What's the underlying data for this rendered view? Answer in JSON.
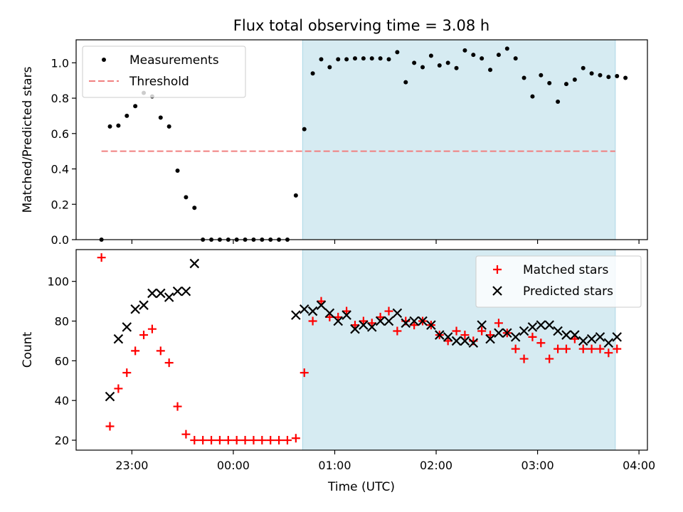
{
  "title": "Flux total observing time = 3.08 h",
  "xlabel": "Time (UTC)",
  "chart_data": [
    {
      "type": "scatter",
      "ylabel": "Matched/Predicted stars",
      "xlim": [
        "22:27",
        "04:05"
      ],
      "ylim": [
        0,
        1.13
      ],
      "yticks": [
        "0.0",
        "0.2",
        "0.4",
        "0.6",
        "0.8",
        "1.0"
      ],
      "grid": false,
      "legend": "top-left",
      "shaded_region": {
        "start": "00:41",
        "end": "03:46",
        "color": "#add8e6"
      },
      "threshold": {
        "name": "Threshold",
        "value": 0.5,
        "x_start": "22:42",
        "x_end": "03:46",
        "color": "#f08080"
      },
      "series": [
        {
          "name": "Measurements",
          "color": "#000000",
          "marker": "dot",
          "points": [
            [
              "22:42",
              0.0
            ],
            [
              "22:47",
              0.64
            ],
            [
              "22:52",
              0.645
            ],
            [
              "22:57",
              0.7
            ],
            [
              "23:02",
              0.755
            ],
            [
              "23:07",
              0.83
            ],
            [
              "23:12",
              0.81
            ],
            [
              "23:17",
              0.69
            ],
            [
              "23:22",
              0.64
            ],
            [
              "23:27",
              0.39
            ],
            [
              "23:32",
              0.24
            ],
            [
              "23:37",
              0.18
            ],
            [
              "23:42",
              0.0
            ],
            [
              "23:47",
              0.0
            ],
            [
              "23:52",
              0.0
            ],
            [
              "23:57",
              0.0
            ],
            [
              "00:02",
              0.0
            ],
            [
              "00:07",
              0.0
            ],
            [
              "00:12",
              0.0
            ],
            [
              "00:17",
              0.0
            ],
            [
              "00:22",
              0.0
            ],
            [
              "00:27",
              0.0
            ],
            [
              "00:32",
              0.0
            ],
            [
              "00:37",
              0.25
            ],
            [
              "00:42",
              0.625
            ],
            [
              "00:47",
              0.94
            ],
            [
              "00:52",
              1.02
            ],
            [
              "00:57",
              0.975
            ],
            [
              "01:02",
              1.02
            ],
            [
              "01:07",
              1.02
            ],
            [
              "01:12",
              1.025
            ],
            [
              "01:17",
              1.025
            ],
            [
              "01:22",
              1.025
            ],
            [
              "01:27",
              1.025
            ],
            [
              "01:32",
              1.02
            ],
            [
              "01:37",
              1.06
            ],
            [
              "01:42",
              0.89
            ],
            [
              "01:47",
              1.0
            ],
            [
              "01:52",
              0.975
            ],
            [
              "01:57",
              1.04
            ],
            [
              "02:02",
              0.985
            ],
            [
              "02:07",
              1.0
            ],
            [
              "02:12",
              0.97
            ],
            [
              "02:17",
              1.07
            ],
            [
              "02:22",
              1.045
            ],
            [
              "02:27",
              1.025
            ],
            [
              "02:32",
              0.96
            ],
            [
              "02:37",
              1.045
            ],
            [
              "02:42",
              1.08
            ],
            [
              "02:47",
              1.025
            ],
            [
              "02:52",
              0.915
            ],
            [
              "02:57",
              0.81
            ],
            [
              "03:02",
              0.93
            ],
            [
              "03:07",
              0.885
            ],
            [
              "03:12",
              0.78
            ],
            [
              "03:17",
              0.88
            ],
            [
              "03:22",
              0.905
            ],
            [
              "03:27",
              0.97
            ],
            [
              "03:32",
              0.94
            ],
            [
              "03:37",
              0.93
            ],
            [
              "03:42",
              0.92
            ],
            [
              "03:47",
              0.925
            ],
            [
              "03:52",
              0.915
            ]
          ]
        }
      ]
    },
    {
      "type": "scatter",
      "ylabel": "Count",
      "xlim": [
        "22:27",
        "04:05"
      ],
      "ylim": [
        15,
        116
      ],
      "yticks": [
        "20",
        "40",
        "60",
        "80",
        "100"
      ],
      "xticks": [
        "23:00",
        "00:00",
        "01:00",
        "02:00",
        "03:00",
        "04:00"
      ],
      "grid": false,
      "legend": "top-right",
      "shaded_region": {
        "start": "00:41",
        "end": "03:46",
        "color": "#add8e6"
      },
      "series": [
        {
          "name": "Matched stars",
          "color": "#ff0000",
          "marker": "plus",
          "points": [
            [
              "22:42",
              112
            ],
            [
              "22:47",
              27
            ],
            [
              "22:52",
              46
            ],
            [
              "22:57",
              54
            ],
            [
              "23:02",
              65
            ],
            [
              "23:07",
              73
            ],
            [
              "23:12",
              76
            ],
            [
              "23:17",
              65
            ],
            [
              "23:22",
              59
            ],
            [
              "23:27",
              37
            ],
            [
              "23:32",
              23
            ],
            [
              "23:37",
              20
            ],
            [
              "23:42",
              20
            ],
            [
              "23:47",
              20
            ],
            [
              "23:52",
              20
            ],
            [
              "23:57",
              20
            ],
            [
              "00:02",
              20
            ],
            [
              "00:07",
              20
            ],
            [
              "00:12",
              20
            ],
            [
              "00:17",
              20
            ],
            [
              "00:22",
              20
            ],
            [
              "00:27",
              20
            ],
            [
              "00:32",
              20
            ],
            [
              "00:37",
              21
            ],
            [
              "00:42",
              54
            ],
            [
              "00:47",
              80
            ],
            [
              "00:52",
              90
            ],
            [
              "00:57",
              82
            ],
            [
              "01:02",
              82
            ],
            [
              "01:07",
              85
            ],
            [
              "01:12",
              78
            ],
            [
              "01:17",
              80
            ],
            [
              "01:22",
              79
            ],
            [
              "01:27",
              82
            ],
            [
              "01:32",
              85
            ],
            [
              "01:37",
              75
            ],
            [
              "01:42",
              80
            ],
            [
              "01:47",
              78
            ],
            [
              "01:52",
              80
            ],
            [
              "01:57",
              78
            ],
            [
              "02:02",
              73
            ],
            [
              "02:07",
              70
            ],
            [
              "02:12",
              75
            ],
            [
              "02:17",
              73
            ],
            [
              "02:22",
              70
            ],
            [
              "02:27",
              75
            ],
            [
              "02:32",
              73
            ],
            [
              "02:37",
              79
            ],
            [
              "02:42",
              74
            ],
            [
              "02:47",
              66
            ],
            [
              "02:52",
              61
            ],
            [
              "02:57",
              72
            ],
            [
              "03:02",
              69
            ],
            [
              "03:07",
              61
            ],
            [
              "03:12",
              66
            ],
            [
              "03:17",
              66
            ],
            [
              "03:22",
              71
            ],
            [
              "03:27",
              66
            ],
            [
              "03:32",
              66
            ],
            [
              "03:37",
              66
            ],
            [
              "03:42",
              64
            ],
            [
              "03:47",
              66
            ]
          ]
        },
        {
          "name": "Predicted stars",
          "color": "#000000",
          "marker": "x",
          "points": [
            [
              "22:47",
              42
            ],
            [
              "22:52",
              71
            ],
            [
              "22:57",
              77
            ],
            [
              "23:02",
              86
            ],
            [
              "23:07",
              88
            ],
            [
              "23:12",
              94
            ],
            [
              "23:17",
              94
            ],
            [
              "23:22",
              92
            ],
            [
              "23:27",
              95
            ],
            [
              "23:32",
              95
            ],
            [
              "23:37",
              109
            ],
            [
              "00:37",
              83
            ],
            [
              "00:42",
              86
            ],
            [
              "00:47",
              85
            ],
            [
              "00:52",
              88
            ],
            [
              "00:57",
              84
            ],
            [
              "01:02",
              80
            ],
            [
              "01:07",
              83
            ],
            [
              "01:12",
              76
            ],
            [
              "01:17",
              78
            ],
            [
              "01:22",
              77
            ],
            [
              "01:27",
              80
            ],
            [
              "01:32",
              80
            ],
            [
              "01:37",
              84
            ],
            [
              "01:42",
              79
            ],
            [
              "01:47",
              80
            ],
            [
              "01:52",
              80
            ],
            [
              "01:57",
              78
            ],
            [
              "02:02",
              73
            ],
            [
              "02:07",
              72
            ],
            [
              "02:12",
              70
            ],
            [
              "02:17",
              70
            ],
            [
              "02:22",
              69
            ],
            [
              "02:27",
              78
            ],
            [
              "02:32",
              71
            ],
            [
              "02:37",
              74
            ],
            [
              "02:42",
              74
            ],
            [
              "02:47",
              72
            ],
            [
              "02:52",
              75
            ],
            [
              "02:57",
              77
            ],
            [
              "03:02",
              78
            ],
            [
              "03:07",
              78
            ],
            [
              "03:12",
              75
            ],
            [
              "03:17",
              73
            ],
            [
              "03:22",
              73
            ],
            [
              "03:27",
              70
            ],
            [
              "03:32",
              71
            ],
            [
              "03:37",
              72
            ],
            [
              "03:42",
              69
            ],
            [
              "03:47",
              72
            ]
          ]
        }
      ]
    }
  ]
}
